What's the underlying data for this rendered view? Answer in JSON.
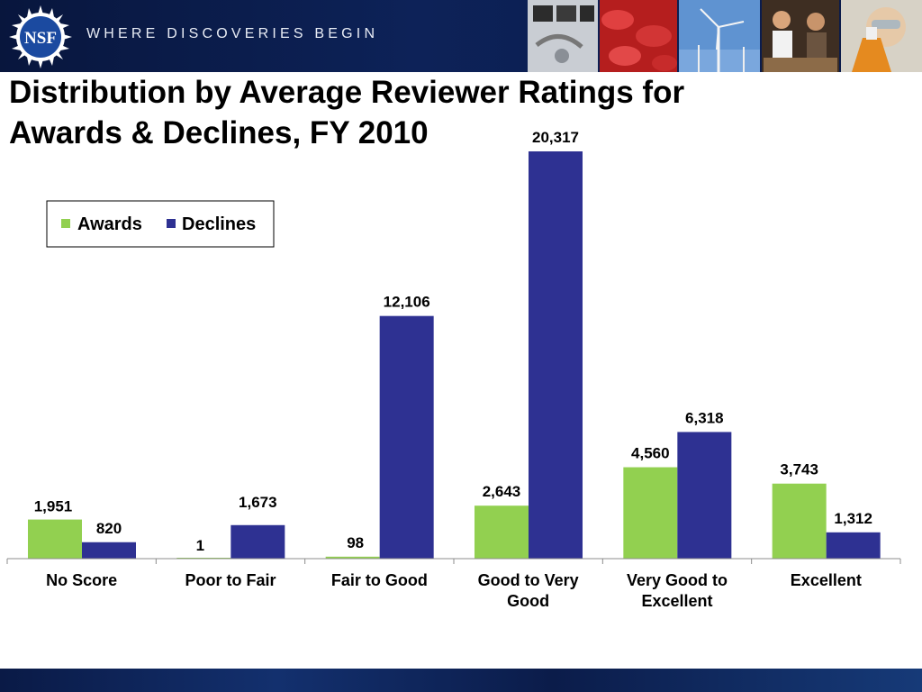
{
  "header": {
    "logo_text": "NSF",
    "tagline": "WHERE DISCOVERIES BEGIN"
  },
  "page_title": "Distribution by Average Reviewer Ratings for Awards & Declines, FY 2010",
  "chart_data": {
    "type": "bar",
    "title": "Distribution by Average Reviewer Ratings for Awards & Declines, FY 2010",
    "xlabel": "",
    "ylabel": "",
    "ylim": [
      0,
      20317
    ],
    "grid": false,
    "legend_position": "top-left",
    "categories": [
      [
        "No Score"
      ],
      [
        "Poor to Fair"
      ],
      [
        "Fair to Good"
      ],
      [
        "Good to Very",
        "Good"
      ],
      [
        "Very Good to",
        "Excellent"
      ],
      [
        "Excellent"
      ]
    ],
    "series": [
      {
        "name": "Awards",
        "color": "#92d050",
        "values": [
          1951,
          1,
          98,
          2643,
          4560,
          3743
        ],
        "labels": [
          "1,951",
          "1",
          "98",
          "2,643",
          "4,560",
          "3,743"
        ]
      },
      {
        "name": "Declines",
        "color": "#2e3192",
        "values": [
          820,
          1673,
          12106,
          20317,
          6318,
          1312
        ],
        "labels": [
          "820",
          "1,673",
          "12,106",
          "20,317",
          "6,318",
          "1,312"
        ]
      }
    ]
  }
}
